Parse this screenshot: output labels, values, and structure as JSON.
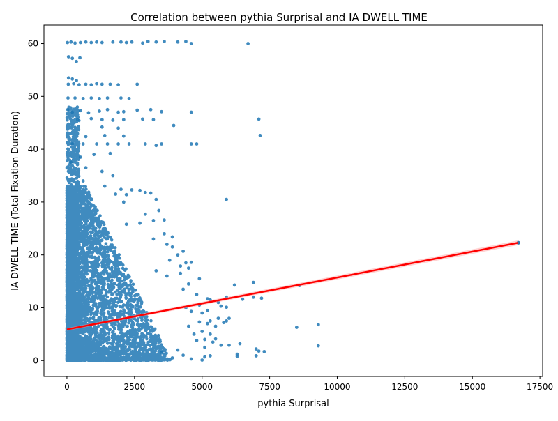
{
  "chart_data": {
    "type": "scatter",
    "title": "Correlation between pythia Surprisal and IA DWELL TIME",
    "xlabel": "pythia Surprisal",
    "ylabel": "IA DWELL TIME (Total Fixation Duration)",
    "xlim": [
      -850,
      17600
    ],
    "ylim": [
      -3,
      63.5
    ],
    "xticks": [
      0,
      2500,
      5000,
      7500,
      10000,
      12500,
      15000,
      17500
    ],
    "yticks": [
      0,
      10,
      20,
      30,
      40,
      50,
      60
    ],
    "grid": false,
    "legend": "none",
    "colors": {
      "points": "#1f77b4",
      "regression": "#ff0000",
      "ci_band": "#ff9999"
    },
    "regression": {
      "x": [
        0,
        16700
      ],
      "y": [
        5.9,
        22.3
      ],
      "ci_halfwidth": [
        0.25,
        0.45
      ]
    },
    "points": [
      [
        20,
        60.2
      ],
      [
        150,
        60.3
      ],
      [
        300,
        60.1
      ],
      [
        500,
        60.2
      ],
      [
        700,
        60.3
      ],
      [
        900,
        60.2
      ],
      [
        1100,
        60.3
      ],
      [
        1300,
        60.2
      ],
      [
        1700,
        60.3
      ],
      [
        2000,
        60.3
      ],
      [
        2200,
        60.2
      ],
      [
        2400,
        60.3
      ],
      [
        2800,
        60.1
      ],
      [
        3000,
        60.4
      ],
      [
        3300,
        60.3
      ],
      [
        3600,
        60.4
      ],
      [
        4100,
        60.3
      ],
      [
        4400,
        60.4
      ],
      [
        4600,
        60.0
      ],
      [
        6700,
        60.0
      ],
      [
        60,
        57.5
      ],
      [
        200,
        57.2
      ],
      [
        350,
        56.6
      ],
      [
        480,
        57.3
      ],
      [
        60,
        53.5
      ],
      [
        200,
        53.3
      ],
      [
        350,
        53.0
      ],
      [
        50,
        52.3
      ],
      [
        250,
        52.4
      ],
      [
        450,
        52.2
      ],
      [
        700,
        52.3
      ],
      [
        900,
        52.2
      ],
      [
        1100,
        52.4
      ],
      [
        1300,
        52.3
      ],
      [
        1600,
        52.3
      ],
      [
        1900,
        52.2
      ],
      [
        2600,
        52.3
      ],
      [
        40,
        49.7
      ],
      [
        300,
        49.7
      ],
      [
        600,
        49.6
      ],
      [
        900,
        49.7
      ],
      [
        1200,
        49.6
      ],
      [
        1500,
        49.7
      ],
      [
        2000,
        49.7
      ],
      [
        2300,
        49.6
      ],
      [
        30,
        47.5
      ],
      [
        200,
        47.0
      ],
      [
        500,
        47.3
      ],
      [
        800,
        46.9
      ],
      [
        1200,
        47.2
      ],
      [
        1500,
        47.5
      ],
      [
        1900,
        47.0
      ],
      [
        2100,
        47.1
      ],
      [
        2600,
        47.4
      ],
      [
        3100,
        47.5
      ],
      [
        3500,
        47.1
      ],
      [
        4600,
        47.0
      ],
      [
        400,
        45.6
      ],
      [
        900,
        45.8
      ],
      [
        1300,
        45.6
      ],
      [
        1700,
        45.5
      ],
      [
        2100,
        45.6
      ],
      [
        2800,
        45.7
      ],
      [
        3200,
        45.6
      ],
      [
        7100,
        45.7
      ],
      [
        3950,
        44.5
      ],
      [
        1300,
        44.2
      ],
      [
        1900,
        44.0
      ],
      [
        7150,
        42.6
      ],
      [
        2100,
        42.5
      ],
      [
        1400,
        42.6
      ],
      [
        700,
        42.4
      ],
      [
        200,
        41.0
      ],
      [
        600,
        41.0
      ],
      [
        1100,
        41.0
      ],
      [
        1500,
        41.0
      ],
      [
        1900,
        41.0
      ],
      [
        2300,
        41.0
      ],
      [
        2900,
        41.0
      ],
      [
        3300,
        40.7
      ],
      [
        3500,
        41.0
      ],
      [
        4600,
        41.0
      ],
      [
        4800,
        41.0
      ],
      [
        1600,
        39.2
      ],
      [
        1000,
        39.0
      ],
      [
        500,
        38.5
      ],
      [
        150,
        37.5
      ],
      [
        700,
        36.5
      ],
      [
        1300,
        35.8
      ],
      [
        1700,
        35.0
      ],
      [
        600,
        34.0
      ],
      [
        1400,
        33.0
      ],
      [
        2000,
        32.4
      ],
      [
        2400,
        32.3
      ],
      [
        2700,
        32.2
      ],
      [
        2900,
        31.8
      ],
      [
        3100,
        31.7
      ],
      [
        1800,
        31.5
      ],
      [
        2200,
        31.4
      ],
      [
        5900,
        30.5
      ],
      [
        3300,
        30.5
      ],
      [
        2100,
        30.0
      ],
      [
        3400,
        28.4
      ],
      [
        2900,
        27.7
      ],
      [
        3200,
        26.5
      ],
      [
        3600,
        26.6
      ],
      [
        2700,
        26.0
      ],
      [
        2200,
        25.8
      ],
      [
        3600,
        24.0
      ],
      [
        3900,
        23.4
      ],
      [
        3200,
        23.0
      ],
      [
        3700,
        22.0
      ],
      [
        3900,
        21.5
      ],
      [
        4300,
        20.7
      ],
      [
        4100,
        20.0
      ],
      [
        3800,
        19.0
      ],
      [
        4400,
        18.5
      ],
      [
        4600,
        18.6
      ],
      [
        4200,
        17.9
      ],
      [
        4500,
        17.5
      ],
      [
        3300,
        17.0
      ],
      [
        4200,
        16.5
      ],
      [
        3700,
        16.0
      ],
      [
        4900,
        15.5
      ],
      [
        4500,
        14.5
      ],
      [
        6900,
        14.8
      ],
      [
        6200,
        14.3
      ],
      [
        8600,
        14.2
      ],
      [
        4300,
        13.5
      ],
      [
        4800,
        12.5
      ],
      [
        5300,
        11.5
      ],
      [
        5200,
        11.7
      ],
      [
        6500,
        11.6
      ],
      [
        5900,
        12.0
      ],
      [
        6900,
        12.0
      ],
      [
        7200,
        11.8
      ],
      [
        5600,
        11.0
      ],
      [
        4900,
        10.5
      ],
      [
        5700,
        10.3
      ],
      [
        5900,
        10.1
      ],
      [
        4400,
        10.0
      ],
      [
        5200,
        9.5
      ],
      [
        4600,
        9.3
      ],
      [
        5000,
        9.0
      ],
      [
        5600,
        8.0
      ],
      [
        6000,
        8.0
      ],
      [
        5300,
        7.5
      ],
      [
        5800,
        7.2
      ],
      [
        5900,
        7.5
      ],
      [
        5200,
        7.0
      ],
      [
        4900,
        7.3
      ],
      [
        8500,
        6.3
      ],
      [
        9300,
        6.8
      ],
      [
        5500,
        6.5
      ],
      [
        4500,
        6.5
      ],
      [
        5000,
        5.5
      ],
      [
        5300,
        5.0
      ],
      [
        4700,
        5.0
      ],
      [
        5100,
        4.0
      ],
      [
        5500,
        4.1
      ],
      [
        4800,
        3.8
      ],
      [
        5400,
        3.5
      ],
      [
        6400,
        3.2
      ],
      [
        6000,
        2.9
      ],
      [
        5700,
        2.9
      ],
      [
        9300,
        2.8
      ],
      [
        5100,
        2.5
      ],
      [
        7000,
        2.2
      ],
      [
        7100,
        1.8
      ],
      [
        7300,
        1.7
      ],
      [
        6300,
        1.2
      ],
      [
        6300,
        0.8
      ],
      [
        5100,
        0.7
      ],
      [
        5300,
        0.9
      ],
      [
        5000,
        0.1
      ],
      [
        7000,
        0.9
      ],
      [
        4100,
        2.0
      ],
      [
        4300,
        1.0
      ],
      [
        3900,
        0.5
      ],
      [
        4600,
        0.3
      ],
      [
        3500,
        1.5
      ]
    ]
  }
}
